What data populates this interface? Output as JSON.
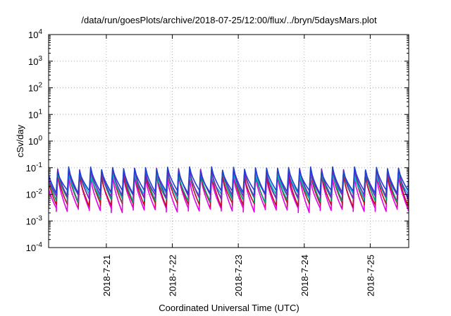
{
  "chart_data": {
    "type": "line",
    "title": "/data/run/goesPlots/archive/2018-07-25/12:00/flux/../bryn/5daysMars.plot",
    "xlabel": "Coordinated Universal Time (UTC)",
    "ylabel": "cSv/day",
    "y_scale": "log",
    "ylim": [
      0.0001,
      10000
    ],
    "xlim": [
      "2018-07-20T03:00",
      "2018-07-25T14:00"
    ],
    "y_ticks": [
      {
        "base": "10",
        "exp": "-4",
        "value": 0.0001
      },
      {
        "base": "10",
        "exp": "-3",
        "value": 0.001
      },
      {
        "base": "10",
        "exp": "-2",
        "value": 0.01
      },
      {
        "base": "10",
        "exp": "-1",
        "value": 0.1
      },
      {
        "base": "10",
        "exp": "0",
        "value": 1
      },
      {
        "base": "10",
        "exp": "1",
        "value": 10
      },
      {
        "base": "10",
        "exp": "2",
        "value": 100
      },
      {
        "base": "10",
        "exp": "3",
        "value": 1000
      },
      {
        "base": "10",
        "exp": "4",
        "value": 10000
      }
    ],
    "x_ticks": [
      {
        "label": "2018-7-21",
        "value": "2018-07-21T00:00"
      },
      {
        "label": "2018-7-22",
        "value": "2018-07-22T00:00"
      },
      {
        "label": "2018-7-23",
        "value": "2018-07-23T00:00"
      },
      {
        "label": "2018-7-24",
        "value": "2018-07-24T00:00"
      },
      {
        "label": "2018-7-25",
        "value": "2018-07-25T00:00"
      }
    ],
    "grid": true,
    "series": [
      {
        "color": "#e600e6",
        "peak": 0.045,
        "trough": 0.0025
      },
      {
        "color": "#c01020",
        "peak": 0.06,
        "trough": 0.004
      },
      {
        "color": "#009e73",
        "peak": 0.07,
        "trough": 0.006
      },
      {
        "color": "#00c0c0",
        "peak": 0.065,
        "trough": 0.009
      },
      {
        "color": "#8020c0",
        "peak": 0.08,
        "trough": 0.008
      },
      {
        "color": "#2040d0",
        "peak": 0.09,
        "trough": 0.012
      }
    ]
  }
}
